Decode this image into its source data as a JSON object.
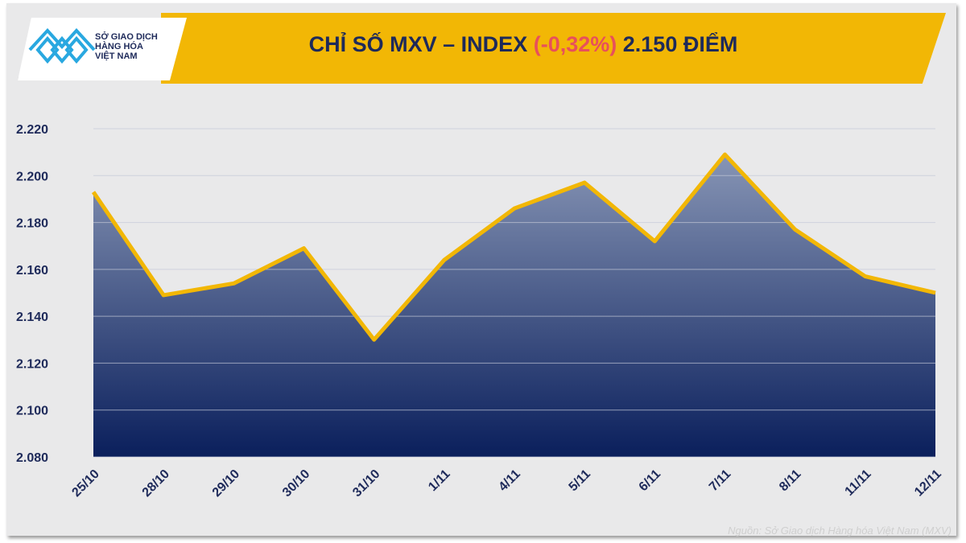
{
  "header": {
    "logo_lines": [
      "SỞ GIAO DỊCH",
      "HÀNG HÓA",
      "VIỆT NAM"
    ],
    "title_prefix": "CHỈ SỐ MXV – INDEX",
    "change": "(-0,32%)",
    "value": "2.150 ĐIỂM",
    "banner_color": "#f2b705",
    "change_color": "#e8505b"
  },
  "source": "Nguồn: Sở Giao dịch Hàng hóa Việt Nam (MXV)",
  "chart_data": {
    "type": "area",
    "categories": [
      "25/10",
      "28/10",
      "29/10",
      "30/10",
      "31/10",
      "1/11",
      "4/11",
      "5/11",
      "6/11",
      "7/11",
      "8/11",
      "11/11",
      "12/11"
    ],
    "values": [
      2193,
      2149,
      2154,
      2169,
      2130,
      2164,
      2186,
      2197,
      2172,
      2209,
      2177,
      2157,
      2150
    ],
    "ylim": [
      2080,
      2220
    ],
    "yticks": [
      2080,
      2100,
      2120,
      2140,
      2160,
      2180,
      2200,
      2220
    ],
    "ytick_labels": [
      "2.080",
      "2.100",
      "2.120",
      "2.140",
      "2.160",
      "2.180",
      "2.200",
      "2.220"
    ],
    "grid": true,
    "line_color": "#f2b705",
    "fill_top_color": "#8795b5",
    "fill_bottom_color": "#0a1f5c"
  }
}
